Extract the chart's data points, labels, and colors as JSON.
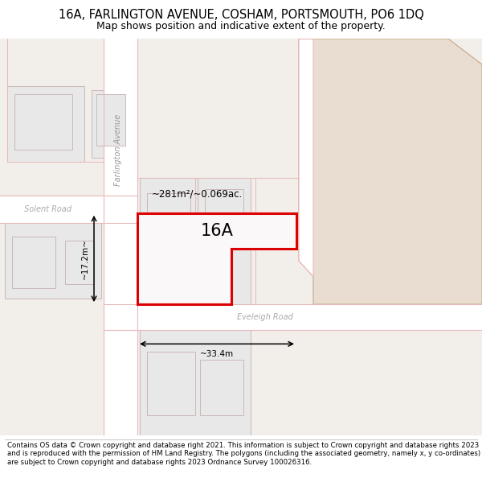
{
  "title": "16A, FARLINGTON AVENUE, COSHAM, PORTSMOUTH, PO6 1DQ",
  "subtitle": "Map shows position and indicative extent of the property.",
  "footer": "Contains OS data © Crown copyright and database right 2021. This information is subject to Crown copyright and database rights 2023 and is reproduced with the permission of HM Land Registry. The polygons (including the associated geometry, namely x, y co-ordinates) are subject to Crown copyright and database rights 2023 Ordnance Survey 100026316.",
  "bg_color": "#ffffff",
  "map_bg": "#f0eeec",
  "road_color": "#ffffff",
  "road_stroke": "#e8b8b8",
  "building_fill": "#e8e8e8",
  "building_stroke": "#ccb8b8",
  "highlight_fill": "#e8ddd0",
  "highlight_stroke": "#c8a888",
  "red_stroke": "#dd0000",
  "plot_fill": "#faf8f8",
  "area_text": "~281m²/~0.069ac.",
  "label_16A": "16A",
  "label_street1": "Farlington Avenue",
  "label_street2": "Solent Road",
  "label_street3": "Eveleigh Road",
  "dim_width": "~33.4m",
  "dim_height": "~17.2m~",
  "title_fontsize": 10.5,
  "subtitle_fontsize": 9,
  "footer_fontsize": 6.2
}
